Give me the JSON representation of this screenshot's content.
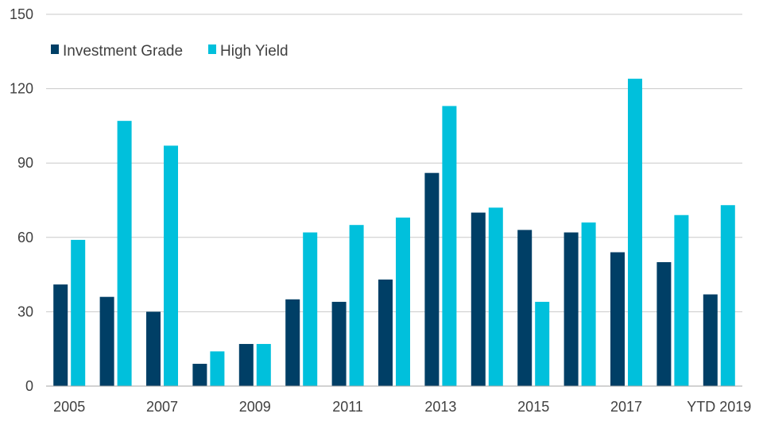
{
  "chart_data": {
    "type": "bar",
    "categories": [
      "2005",
      "2006",
      "2007",
      "2008",
      "2009",
      "2010",
      "2011",
      "2012",
      "2013",
      "2014",
      "2015",
      "2016",
      "2017",
      "2018",
      "YTD 2019"
    ],
    "x_tick_labels": [
      "2005",
      "",
      "2007",
      "",
      "2009",
      "",
      "2011",
      "",
      "2013",
      "",
      "2015",
      "",
      "2017",
      "",
      "YTD 2019"
    ],
    "series": [
      {
        "name": "Investment Grade",
        "color": "#003f66",
        "values": [
          41,
          36,
          30,
          9,
          17,
          35,
          34,
          43,
          86,
          70,
          63,
          62,
          54,
          50,
          37
        ]
      },
      {
        "name": "High Yield",
        "color": "#00c0dc",
        "values": [
          59,
          107,
          97,
          14,
          17,
          62,
          65,
          68,
          113,
          72,
          34,
          66,
          124,
          69,
          73
        ]
      }
    ],
    "ylim": [
      0,
      150
    ],
    "yticks": [
      "0",
      "30",
      "60",
      "90",
      "120",
      "150"
    ],
    "grid": true,
    "legend_position": "top-left"
  }
}
